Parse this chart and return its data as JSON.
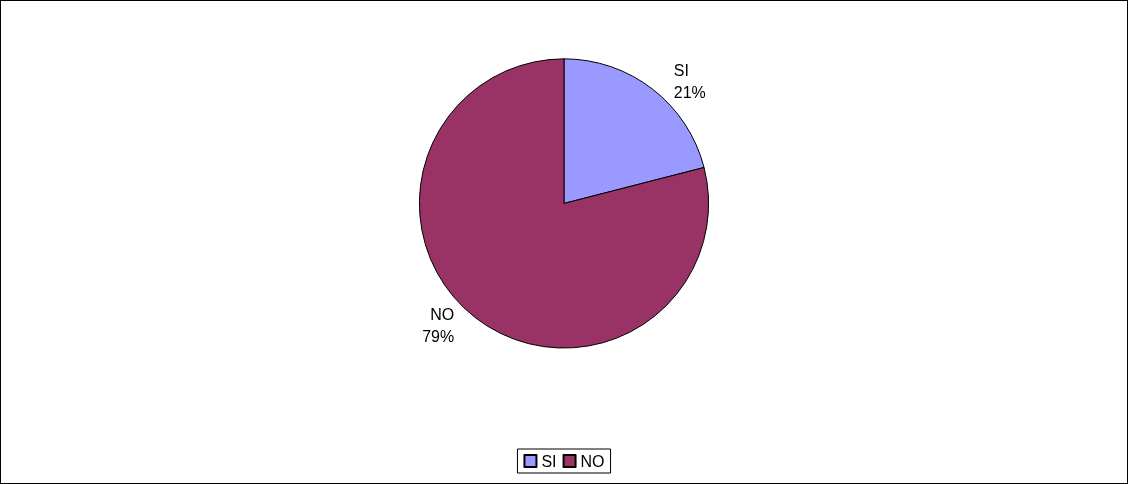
{
  "chart_data": {
    "type": "pie",
    "categories": [
      "SI",
      "NO"
    ],
    "values": [
      21,
      79
    ],
    "colors": [
      "#9999ff",
      "#993366"
    ],
    "value_labels": [
      "21%",
      "79%"
    ],
    "legend": "bottom"
  }
}
